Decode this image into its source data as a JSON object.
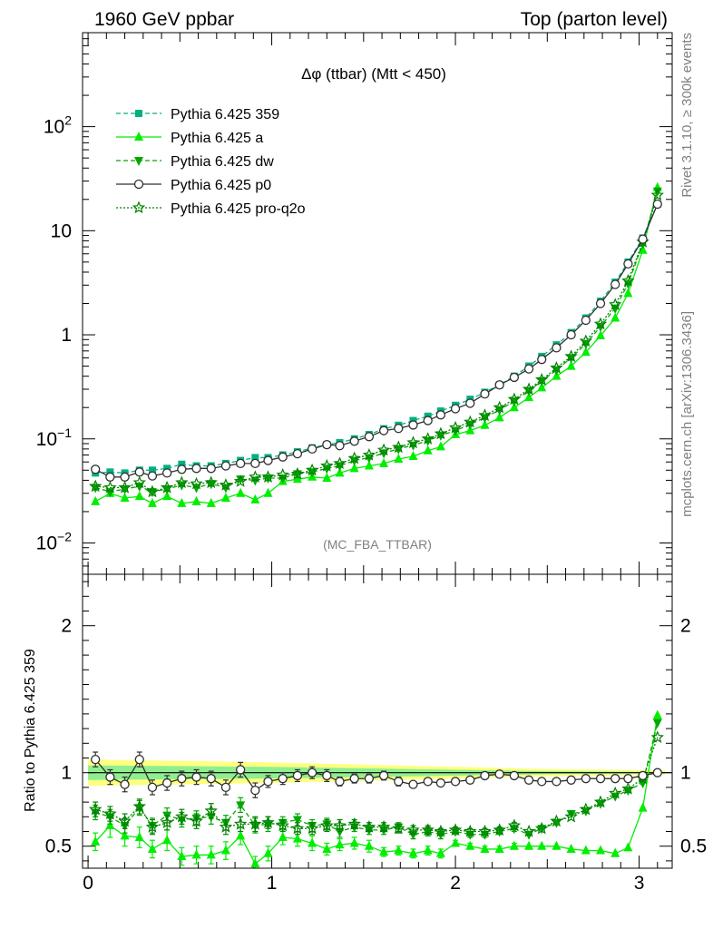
{
  "header": {
    "left": "1960 GeV ppbar",
    "right": "Top (parton level)"
  },
  "side": {
    "rivet": "Rivet 3.1.10, ≥ 300k events",
    "mcplots": "mcplots.cern.ch [arXiv:1306.3436]"
  },
  "chart_data": [
    {
      "type": "line",
      "panel": "main",
      "title": "Δφ (ttbar) (Mtt < 450)",
      "watermark": "(MC_FBA_TTBAR)",
      "yscale": "log",
      "ylim": [
        0.005,
        800
      ],
      "xlim": [
        -0.03,
        3.18
      ],
      "xticks": [
        0,
        1,
        2,
        3
      ],
      "yticks": [
        {
          "v": 0.01,
          "base": "10",
          "exp": "−2"
        },
        {
          "v": 0.1,
          "base": "10",
          "exp": "−1"
        },
        {
          "v": 1,
          "base": "1",
          "exp": ""
        },
        {
          "v": 10,
          "base": "10",
          "exp": ""
        },
        {
          "v": 100,
          "base": "10",
          "exp": "2"
        }
      ],
      "legend_position": "top-left",
      "x": [
        0.04,
        0.12,
        0.2,
        0.28,
        0.35,
        0.43,
        0.51,
        0.59,
        0.67,
        0.75,
        0.83,
        0.91,
        0.98,
        1.06,
        1.14,
        1.22,
        1.3,
        1.37,
        1.45,
        1.53,
        1.61,
        1.69,
        1.77,
        1.85,
        1.92,
        2.0,
        2.08,
        2.16,
        2.24,
        2.32,
        2.4,
        2.47,
        2.55,
        2.63,
        2.71,
        2.79,
        2.87,
        2.94,
        3.02,
        3.1
      ],
      "series": [
        {
          "name": "Pythia 6.425 359",
          "color": "#00b080",
          "marker": "square",
          "dash": "5,3",
          "values": [
            0.047,
            0.048,
            0.047,
            0.05,
            0.05,
            0.052,
            0.057,
            0.055,
            0.055,
            0.058,
            0.062,
            0.066,
            0.066,
            0.07,
            0.075,
            0.082,
            0.088,
            0.092,
            0.1,
            0.11,
            0.125,
            0.135,
            0.15,
            0.165,
            0.185,
            0.21,
            0.24,
            0.28,
            0.33,
            0.4,
            0.5,
            0.62,
            0.8,
            1.05,
            1.45,
            2.1,
            3.2,
            5.0,
            8.5,
            18
          ]
        },
        {
          "name": "Pythia 6.425 a",
          "color": "#00ee00",
          "marker": "triangle-up",
          "dash": "",
          "values": [
            0.025,
            0.03,
            0.027,
            0.028,
            0.024,
            0.028,
            0.024,
            0.025,
            0.024,
            0.027,
            0.03,
            0.026,
            0.03,
            0.039,
            0.041,
            0.043,
            0.042,
            0.047,
            0.052,
            0.055,
            0.058,
            0.064,
            0.068,
            0.077,
            0.084,
            0.11,
            0.12,
            0.135,
            0.16,
            0.2,
            0.25,
            0.31,
            0.4,
            0.5,
            0.68,
            0.98,
            1.45,
            2.5,
            6.5,
            26
          ]
        },
        {
          "name": "Pythia 6.425 dw",
          "color": "#00a800",
          "marker": "triangle-down",
          "dash": "5,3",
          "values": [
            0.034,
            0.031,
            0.033,
            0.035,
            0.031,
            0.033,
            0.036,
            0.034,
            0.037,
            0.034,
            0.041,
            0.04,
            0.042,
            0.042,
            0.046,
            0.048,
            0.052,
            0.055,
            0.062,
            0.066,
            0.073,
            0.08,
            0.087,
            0.096,
            0.108,
            0.12,
            0.138,
            0.16,
            0.19,
            0.23,
            0.29,
            0.36,
            0.46,
            0.6,
            0.82,
            1.2,
            1.8,
            3.1,
            7.5,
            24
          ]
        },
        {
          "name": "Pythia 6.425 p0",
          "color": "#303030",
          "marker": "circle-open",
          "dash": "",
          "values": [
            0.051,
            0.043,
            0.043,
            0.048,
            0.044,
            0.047,
            0.051,
            0.052,
            0.052,
            0.055,
            0.058,
            0.058,
            0.062,
            0.067,
            0.072,
            0.08,
            0.088,
            0.086,
            0.095,
            0.105,
            0.12,
            0.126,
            0.136,
            0.15,
            0.17,
            0.195,
            0.22,
            0.27,
            0.33,
            0.39,
            0.47,
            0.58,
            0.75,
            1.0,
            1.38,
            2.0,
            3.05,
            4.8,
            8.3,
            18
          ]
        },
        {
          "name": "Pythia 6.425 pro-q2o",
          "color": "#008000",
          "marker": "star-open",
          "dash": "2,2",
          "values": [
            0.035,
            0.034,
            0.034,
            0.038,
            0.031,
            0.034,
            0.038,
            0.037,
            0.038,
            0.036,
            0.039,
            0.043,
            0.043,
            0.045,
            0.046,
            0.05,
            0.055,
            0.058,
            0.065,
            0.07,
            0.078,
            0.083,
            0.092,
            0.1,
            0.112,
            0.128,
            0.145,
            0.168,
            0.2,
            0.24,
            0.3,
            0.37,
            0.48,
            0.62,
            0.87,
            1.27,
            1.95,
            3.3,
            7.8,
            22
          ]
        }
      ]
    },
    {
      "type": "line",
      "panel": "ratio",
      "ylabel": "Ratio to Pythia 6.425 359",
      "ylim": [
        0.35,
        2.35
      ],
      "xlim": [
        -0.03,
        3.18
      ],
      "xticks": [
        0,
        1,
        2,
        3
      ],
      "yticks_left": [
        0.5,
        1,
        2
      ],
      "reference": "Pythia 6.425 359",
      "bands": {
        "x": [
          0.0,
          1.0,
          2.0,
          2.5,
          3.14
        ],
        "yellow_lo": [
          0.91,
          0.93,
          0.96,
          0.975,
          0.985
        ],
        "yellow_hi": [
          1.09,
          1.07,
          1.04,
          1.025,
          1.015
        ],
        "green_lo": [
          0.95,
          0.96,
          0.98,
          0.99,
          0.995
        ],
        "green_hi": [
          1.05,
          1.04,
          1.02,
          1.01,
          1.005
        ]
      },
      "x": [
        0.04,
        0.12,
        0.2,
        0.28,
        0.35,
        0.43,
        0.51,
        0.59,
        0.67,
        0.75,
        0.83,
        0.91,
        0.98,
        1.06,
        1.14,
        1.22,
        1.3,
        1.37,
        1.45,
        1.53,
        1.61,
        1.69,
        1.77,
        1.85,
        1.92,
        2.0,
        2.08,
        2.16,
        2.24,
        2.32,
        2.4,
        2.47,
        2.55,
        2.63,
        2.71,
        2.79,
        2.87,
        2.94,
        3.02,
        3.1
      ],
      "series": [
        {
          "name": "Pythia 6.425 a",
          "color": "#00ee00",
          "marker": "triangle-up",
          "dash": "",
          "values": [
            0.53,
            0.64,
            0.57,
            0.56,
            0.48,
            0.54,
            0.43,
            0.44,
            0.44,
            0.47,
            0.57,
            0.38,
            0.45,
            0.56,
            0.55,
            0.52,
            0.48,
            0.51,
            0.52,
            0.5,
            0.46,
            0.47,
            0.45,
            0.47,
            0.45,
            0.52,
            0.5,
            0.48,
            0.48,
            0.5,
            0.5,
            0.5,
            0.5,
            0.48,
            0.47,
            0.47,
            0.45,
            0.49,
            0.76,
            1.39
          ],
          "errors": [
            0.06,
            0.08,
            0.07,
            0.07,
            0.06,
            0.07,
            0.06,
            0.06,
            0.06,
            0.06,
            0.06,
            0.05,
            0.05,
            0.05,
            0.05,
            0.05,
            0.04,
            0.04,
            0.04,
            0.04,
            0.03,
            0.03,
            0.03,
            0.03,
            0.03,
            0.02,
            0.02,
            0.02,
            0.02,
            0.02,
            0.0,
            0.0,
            0.0,
            0.0,
            0.0,
            0.0,
            0.0,
            0.0,
            0.0,
            0.0
          ]
        },
        {
          "name": "Pythia 6.425 dw",
          "color": "#00a800",
          "marker": "triangle-down",
          "dash": "5,3",
          "values": [
            0.73,
            0.7,
            0.64,
            0.76,
            0.64,
            0.71,
            0.68,
            0.69,
            0.7,
            0.66,
            0.78,
            0.64,
            0.65,
            0.66,
            0.68,
            0.64,
            0.65,
            0.6,
            0.63,
            0.61,
            0.61,
            0.63,
            0.58,
            0.6,
            0.58,
            0.6,
            0.58,
            0.58,
            0.6,
            0.62,
            0.58,
            0.62,
            0.66,
            0.72,
            0.74,
            0.79,
            0.84,
            0.88,
            0.93,
            1.34
          ],
          "errors": [
            0.05,
            0.05,
            0.05,
            0.05,
            0.05,
            0.05,
            0.05,
            0.05,
            0.05,
            0.05,
            0.05,
            0.05,
            0.05,
            0.04,
            0.04,
            0.04,
            0.04,
            0.04,
            0.03,
            0.03,
            0.03,
            0.03,
            0.03,
            0.03,
            0.03,
            0.02,
            0.02,
            0.02,
            0.02,
            0.02,
            0.0,
            0.0,
            0.0,
            0.0,
            0.0,
            0.0,
            0.0,
            0.0,
            0.0,
            0.0
          ]
        },
        {
          "name": "Pythia 6.425 p0",
          "color": "#303030",
          "marker": "circle-open",
          "dash": "",
          "values": [
            1.09,
            0.97,
            0.92,
            1.09,
            0.9,
            0.93,
            0.96,
            0.97,
            0.96,
            0.9,
            1.02,
            0.88,
            0.94,
            0.96,
            0.98,
            1.0,
            0.98,
            0.94,
            0.96,
            0.96,
            0.98,
            0.94,
            0.92,
            0.94,
            0.93,
            0.94,
            0.95,
            0.98,
            0.99,
            0.98,
            0.95,
            0.94,
            0.94,
            0.95,
            0.96,
            0.96,
            0.96,
            0.96,
            0.98,
            1.0
          ],
          "errors": [
            0.05,
            0.05,
            0.05,
            0.05,
            0.05,
            0.05,
            0.05,
            0.05,
            0.05,
            0.05,
            0.05,
            0.05,
            0.04,
            0.04,
            0.04,
            0.04,
            0.04,
            0.03,
            0.03,
            0.03,
            0.03,
            0.03,
            0.02,
            0.02,
            0.02,
            0.02,
            0.02,
            0.01,
            0.01,
            0.0,
            0.0,
            0.0,
            0.0,
            0.0,
            0.0,
            0.0,
            0.0,
            0.0,
            0.0,
            0.0
          ]
        },
        {
          "name": "Pythia 6.425 pro-q2o",
          "color": "#008000",
          "marker": "star-open",
          "dash": "2,2",
          "values": [
            0.75,
            0.72,
            0.67,
            0.77,
            0.63,
            0.66,
            0.7,
            0.67,
            0.74,
            0.63,
            0.65,
            0.65,
            0.66,
            0.64,
            0.62,
            0.62,
            0.64,
            0.64,
            0.65,
            0.63,
            0.63,
            0.62,
            0.61,
            0.61,
            0.6,
            0.61,
            0.6,
            0.6,
            0.61,
            0.64,
            0.6,
            0.62,
            0.67,
            0.7,
            0.75,
            0.8,
            0.86,
            0.89,
            0.96,
            1.24
          ],
          "errors": [
            0.05,
            0.05,
            0.05,
            0.05,
            0.05,
            0.05,
            0.05,
            0.05,
            0.05,
            0.05,
            0.05,
            0.05,
            0.04,
            0.04,
            0.04,
            0.04,
            0.04,
            0.04,
            0.03,
            0.03,
            0.03,
            0.03,
            0.03,
            0.03,
            0.02,
            0.02,
            0.02,
            0.02,
            0.02,
            0.02,
            0.0,
            0.0,
            0.0,
            0.0,
            0.0,
            0.0,
            0.0,
            0.0,
            0.0,
            0.0
          ]
        }
      ]
    }
  ]
}
